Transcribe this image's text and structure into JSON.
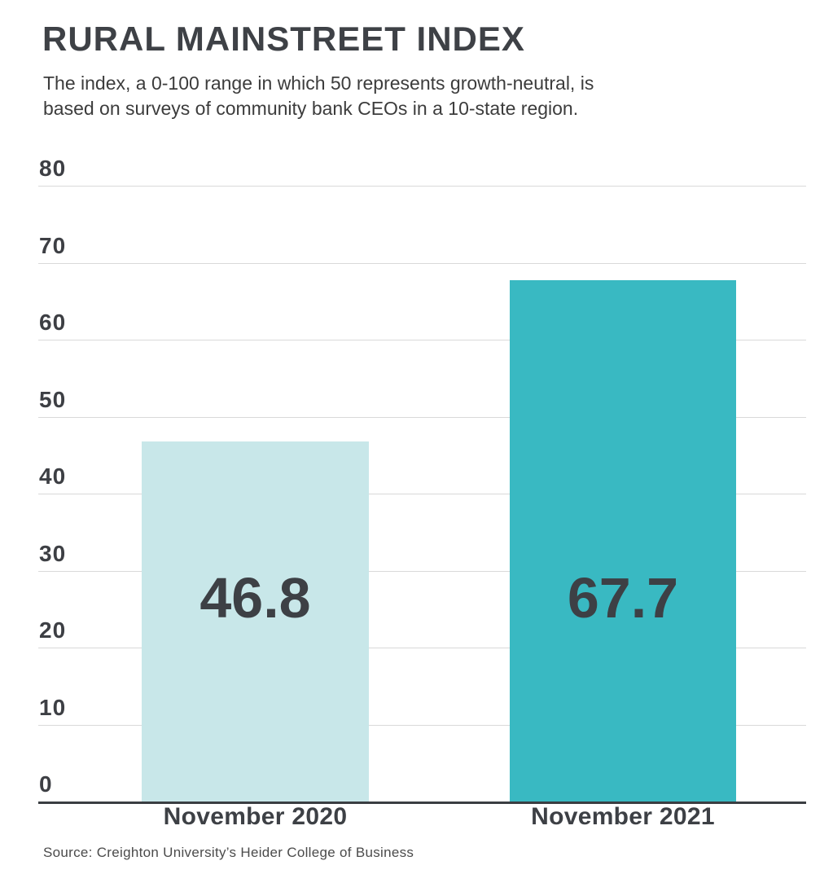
{
  "header": {
    "title": "RURAL MAINSTREET INDEX",
    "subtitle_lines": [
      "The index, a 0-100 range in which 50 represents growth-neutral, is",
      "based on surveys of community bank CEOs in a 10-state region."
    ]
  },
  "chart_data": {
    "type": "bar",
    "title": "RURAL MAINSTREET INDEX",
    "subtitle": "The index, a 0-100 range in which 50 represents growth-neutral, is based on surveys of community bank CEOs in a 10-state region.",
    "categories": [
      "November 2020",
      "November 2021"
    ],
    "values": [
      46.8,
      67.7
    ],
    "value_labels": [
      "46.8",
      "67.7"
    ],
    "bar_colors": [
      "#c8e7e9",
      "#39b9c2"
    ],
    "xlabel": "",
    "ylabel": "",
    "ylim": [
      0,
      80
    ],
    "yticks": [
      0,
      10,
      20,
      30,
      40,
      50,
      60,
      70,
      80
    ],
    "grid": "horizontal",
    "legend_position": "none"
  },
  "footer": {
    "source": "Source: Creighton University’s Heider College of Business"
  }
}
